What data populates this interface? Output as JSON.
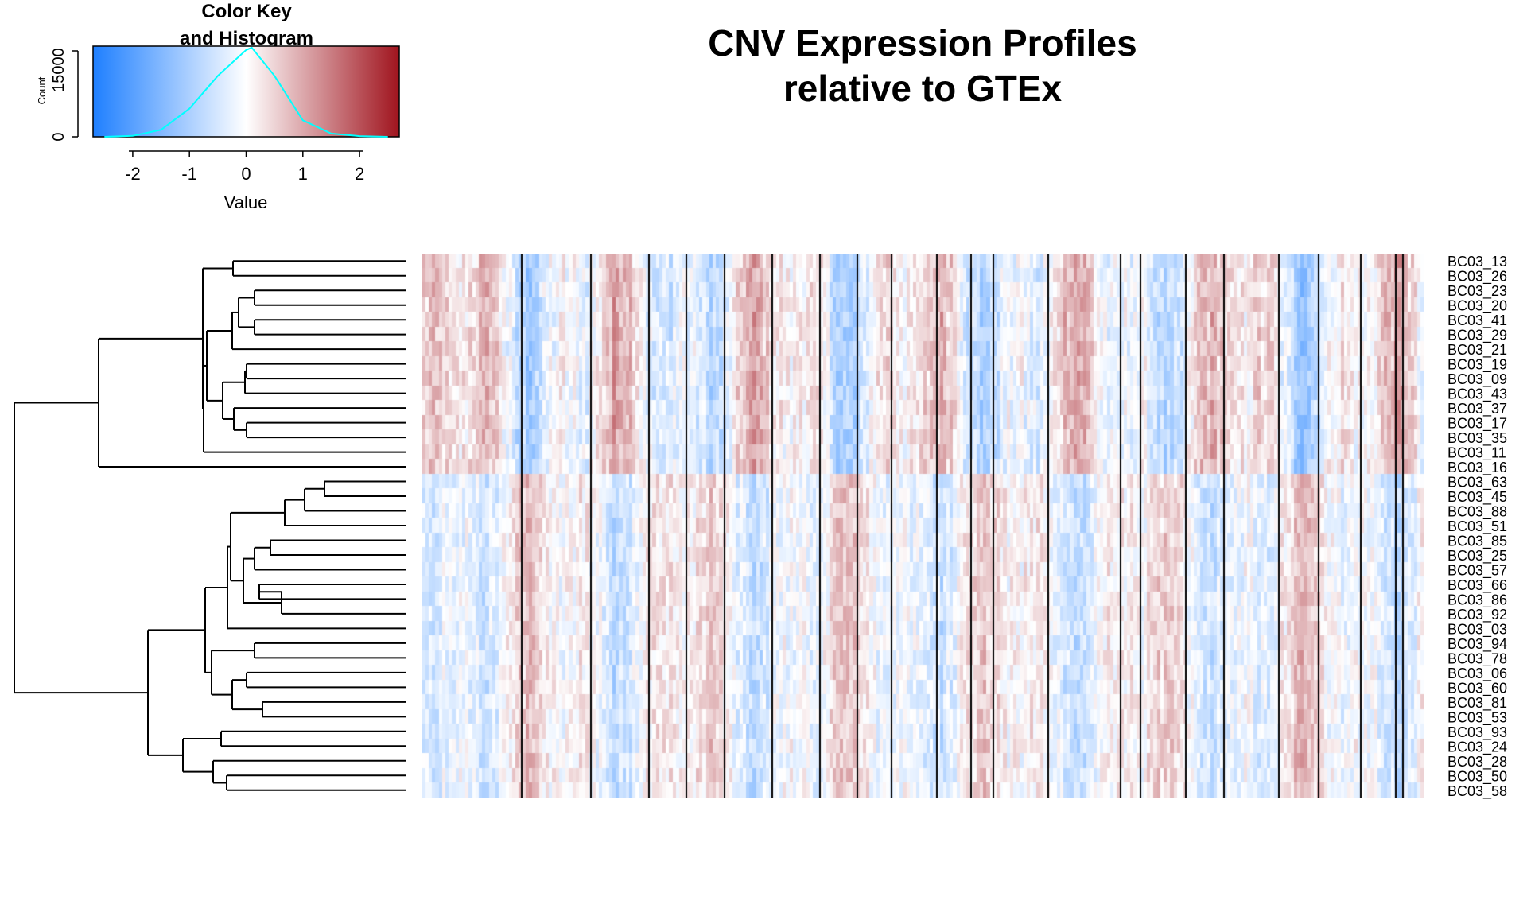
{
  "title_line1": "CNV Expression Profiles",
  "title_line2": "relative to GTEx",
  "color_key": {
    "title_line1": "Color Key",
    "title_line2": "and Histogram",
    "xlabel": "Value",
    "ylabel": "Count",
    "x_ticks": [
      "-2",
      "-1",
      "0",
      "1",
      "2"
    ],
    "y_ticks": [
      "0",
      "15000"
    ],
    "palette": [
      "#1E7FFF",
      "#FFFFFF",
      "#A0141E"
    ],
    "histogram_color": "#00FFFF"
  },
  "chart_data": {
    "type": "heatmap",
    "title": "CNV Expression Profiles\nrelative to GTEx",
    "rows": [
      "BC03_13",
      "BC03_26",
      "BC03_23",
      "BC03_20",
      "BC03_41",
      "BC03_29",
      "BC03_21",
      "BC03_19",
      "BC03_09",
      "BC03_43",
      "BC03_37",
      "BC03_17",
      "BC03_35",
      "BC03_11",
      "BC03_16",
      "BC03_63",
      "BC03_45",
      "BC03_88",
      "BC03_51",
      "BC03_85",
      "BC03_25",
      "BC03_57",
      "BC03_66",
      "BC03_86",
      "BC03_92",
      "BC03_03",
      "BC03_94",
      "BC03_78",
      "BC03_06",
      "BC03_60",
      "BC03_81",
      "BC03_53",
      "BC03_93",
      "BC03_24",
      "BC03_28",
      "BC03_50",
      "BC03_58"
    ],
    "value_range": [
      -2.7,
      2.7
    ],
    "color_key_histogram": {
      "x": [
        -2.5,
        -2.0,
        -1.5,
        -1.0,
        -0.5,
        0.0,
        0.1,
        0.5,
        1.0,
        1.5,
        2.0,
        2.5
      ],
      "count": [
        0,
        200,
        1500,
        6000,
        13000,
        18500,
        19000,
        13000,
        3500,
        700,
        150,
        0
      ]
    },
    "row_dendrogram": true,
    "column_separators": true
  }
}
